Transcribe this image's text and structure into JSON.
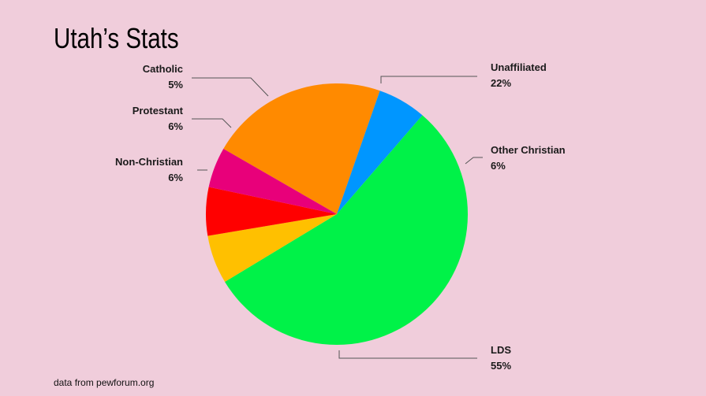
{
  "page": {
    "title": "Utah’s Stats",
    "source": "data from pewforum.org"
  },
  "chart_data": {
    "type": "pie",
    "title": "Utah’s Stats",
    "slices": [
      {
        "label": "Unaffiliated",
        "value": 22,
        "value_label": "22%",
        "color": "#ff8a00"
      },
      {
        "label": "Other Christian",
        "value": 6,
        "value_label": "6%",
        "color": "#0096ff"
      },
      {
        "label": "LDS",
        "value": 55,
        "value_label": "55%",
        "color": "#00f248"
      },
      {
        "label": "Non-Christian",
        "value": 6,
        "value_label": "6%",
        "color": "#ffc000"
      },
      {
        "label": "Protestant",
        "value": 6,
        "value_label": "6%",
        "color": "#ff0000"
      },
      {
        "label": "Catholic",
        "value": 5,
        "value_label": "5%",
        "color": "#e8007a"
      }
    ]
  }
}
